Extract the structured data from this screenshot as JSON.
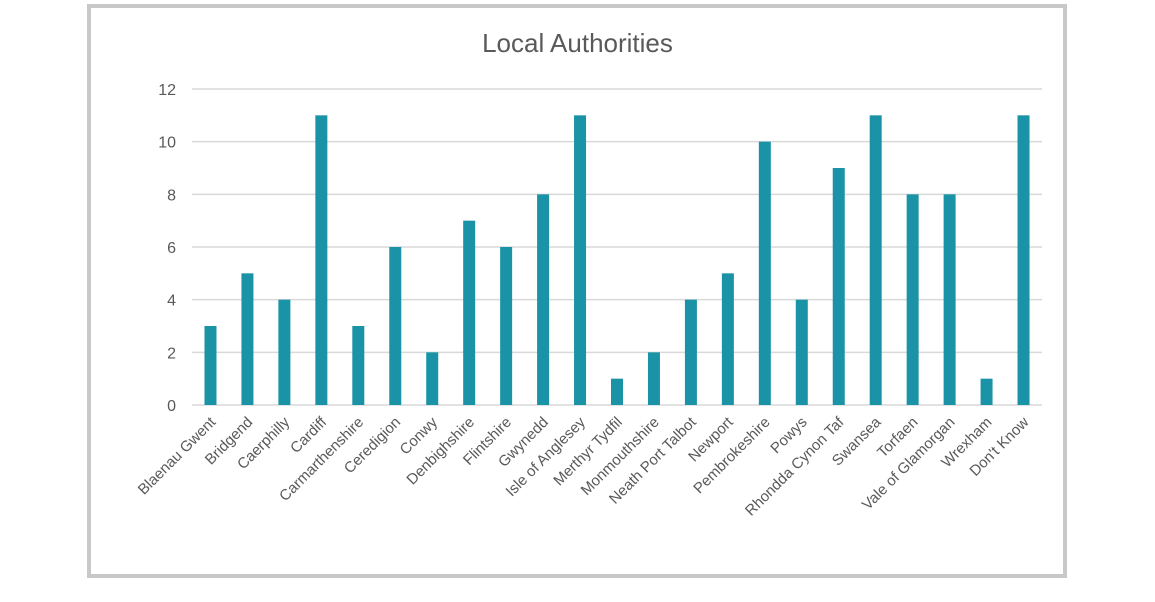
{
  "chart_data": {
    "type": "bar",
    "title": "Local Authorities",
    "categories": [
      "Blaenau Gwent",
      "Bridgend",
      "Caerphilly",
      "Cardiff",
      "Carmarthenshire",
      "Ceredigion",
      "Conwy",
      "Denbighshire",
      "Flintshire",
      "Gwynedd",
      "Isle of Anglesey",
      "Merthyr Tydfil",
      "Monmouthshire",
      "Neath Port Talbot",
      "Newport",
      "Pembrokeshire",
      "Powys",
      "Rhondda Cynon Taf",
      "Swansea",
      "Torfaen",
      "Vale of Glamorgan",
      "Wrexham",
      "Don't Know"
    ],
    "values": [
      3,
      5,
      4,
      11,
      3,
      6,
      2,
      7,
      6,
      8,
      11,
      1,
      2,
      4,
      5,
      10,
      4,
      9,
      11,
      8,
      8,
      1,
      11
    ],
    "xlabel": "",
    "ylabel": "",
    "ylim": [
      0,
      12
    ],
    "yticks": [
      "0",
      "2",
      "4",
      "6",
      "8",
      "10",
      "12"
    ],
    "grid": true,
    "legend": "none",
    "bar_color": "#1a93a6"
  }
}
